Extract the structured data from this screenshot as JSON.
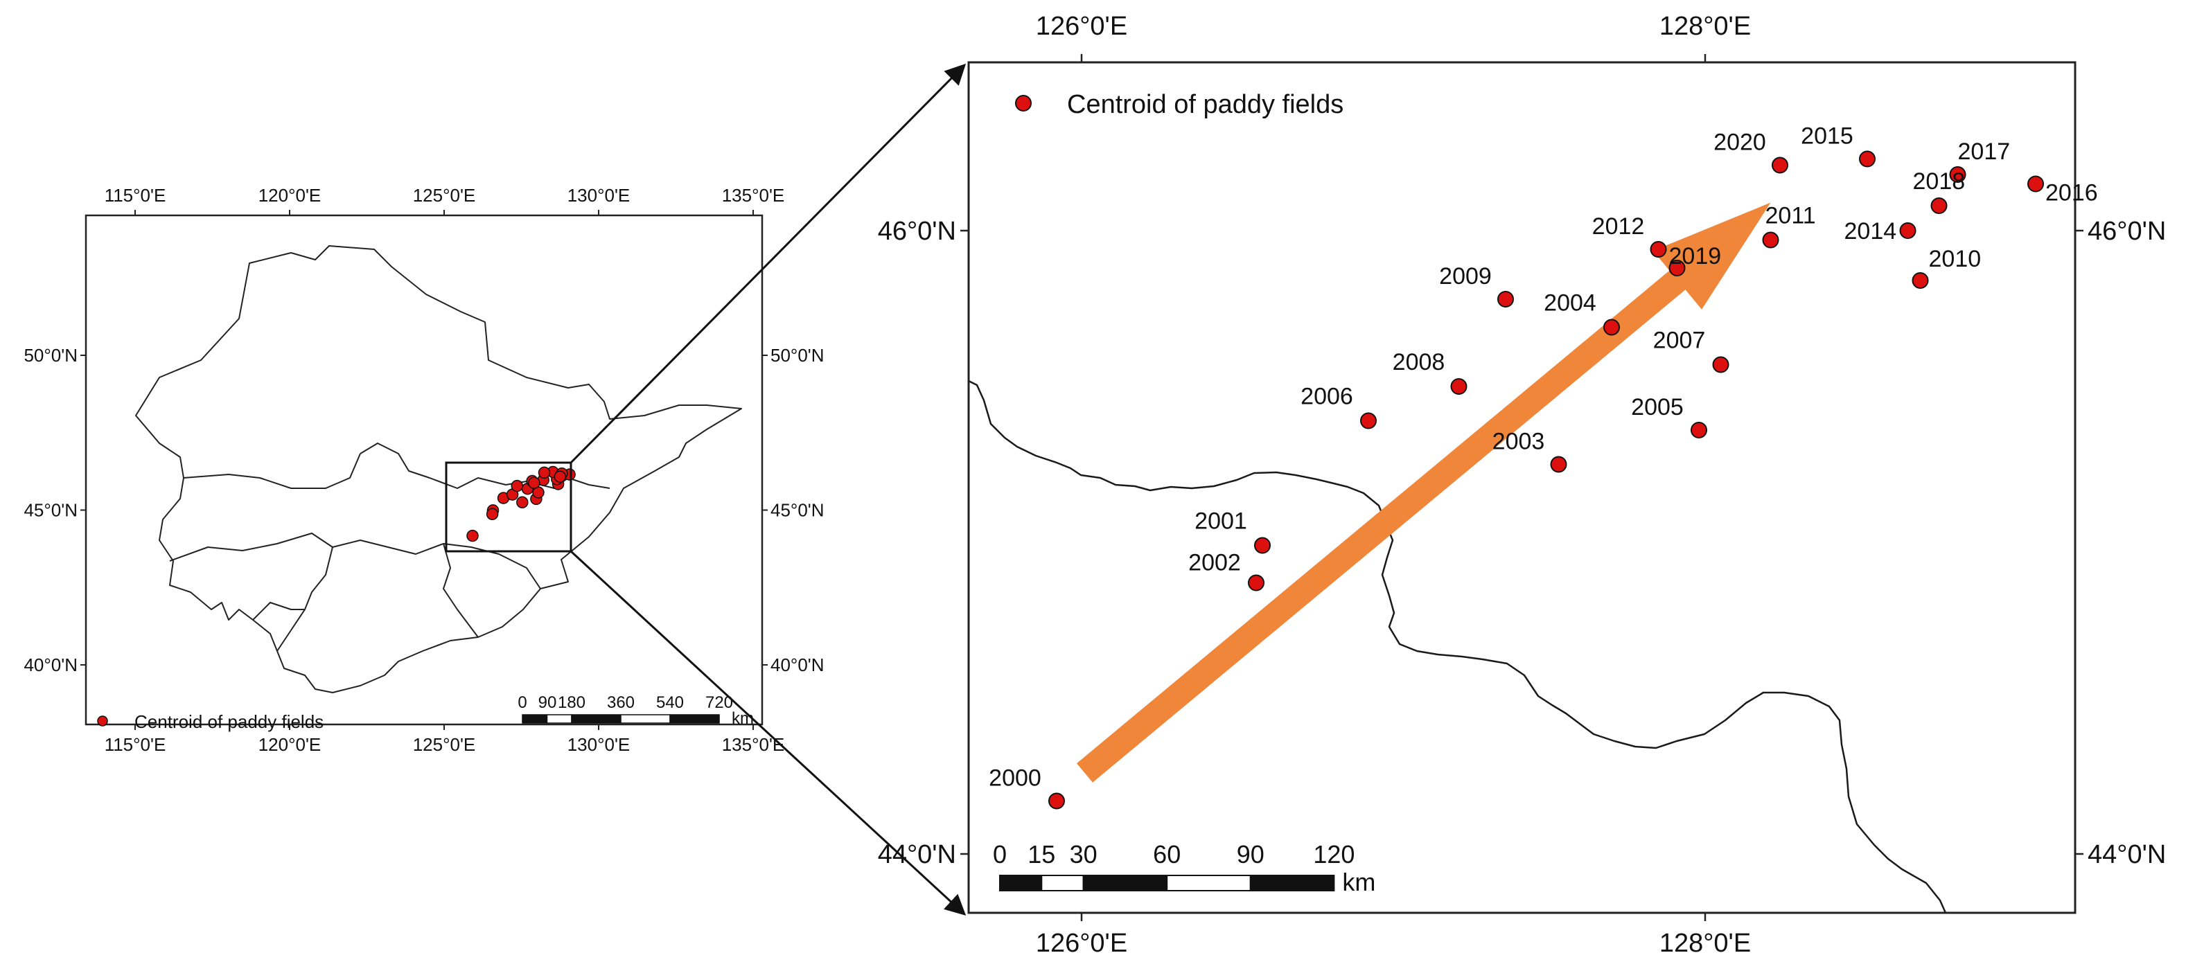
{
  "overview_map": {
    "top_lon_labels": [
      "115°0'E",
      "120°0'E",
      "125°0'E",
      "130°0'E",
      "135°0'E"
    ],
    "bottom_lon_labels": [
      "115°0'E",
      "120°0'E",
      "125°0'E",
      "130°0'E",
      "135°0'E"
    ],
    "left_lat_labels": [
      "50°0'N",
      "45°0'N",
      "40°0'N"
    ],
    "right_lat_labels": [
      "50°0'N",
      "45°0'N",
      "40°0'N"
    ],
    "legend_label": "Centroid of paddy fields",
    "scale_labels": [
      "0",
      "90",
      "180",
      "360",
      "540",
      "720"
    ],
    "scale_unit": "km"
  },
  "detail_map": {
    "top_lon_labels": [
      "126°0'E",
      "128°0'E"
    ],
    "bottom_lon_labels": [
      "126°0'E",
      "128°0'E"
    ],
    "left_lat_labels": [
      "46°0'N",
      "44°0'N"
    ],
    "right_lat_labels": [
      "46°0'N",
      "44°0'N"
    ],
    "legend_label": "Centroid of paddy fields",
    "scale_labels": [
      "0",
      "15",
      "30",
      "60",
      "90",
      "120"
    ],
    "scale_unit": "km",
    "centroids": [
      {
        "year": "2000",
        "lon": 125.92,
        "lat": 44.17
      },
      {
        "year": "2001",
        "lon": 126.58,
        "lat": 44.99
      },
      {
        "year": "2002",
        "lon": 126.56,
        "lat": 44.87
      },
      {
        "year": "2003",
        "lon": 127.53,
        "lat": 45.25
      },
      {
        "year": "2004",
        "lon": 127.7,
        "lat": 45.69
      },
      {
        "year": "2005",
        "lon": 127.98,
        "lat": 45.36
      },
      {
        "year": "2006",
        "lon": 126.92,
        "lat": 45.39
      },
      {
        "year": "2007",
        "lon": 128.05,
        "lat": 45.57
      },
      {
        "year": "2008",
        "lon": 127.21,
        "lat": 45.5
      },
      {
        "year": "2009",
        "lon": 127.36,
        "lat": 45.78
      },
      {
        "year": "2010",
        "lon": 128.69,
        "lat": 45.84
      },
      {
        "year": "2011",
        "lon": 128.21,
        "lat": 45.97
      },
      {
        "year": "2012",
        "lon": 127.85,
        "lat": 45.94
      },
      {
        "year": "2014",
        "lon": 128.65,
        "lat": 46.0
      },
      {
        "year": "2015",
        "lon": 128.52,
        "lat": 46.23
      },
      {
        "year": "2016",
        "lon": 129.06,
        "lat": 46.15
      },
      {
        "year": "2017",
        "lon": 128.81,
        "lat": 46.18
      },
      {
        "year": "2018",
        "lon": 128.75,
        "lat": 46.08
      },
      {
        "year": "2019",
        "lon": 127.91,
        "lat": 45.88
      },
      {
        "year": "2020",
        "lon": 128.24,
        "lat": 46.21
      }
    ],
    "trend_arrow": {
      "from": {
        "lon": 126.01,
        "lat": 44.26
      },
      "to": {
        "lon": 128.21,
        "lat": 46.09
      }
    }
  },
  "colors": {
    "centroid_fill": "#dd1010",
    "trend_arrow": "#f0863a",
    "boundary": "#1a1a1a"
  }
}
